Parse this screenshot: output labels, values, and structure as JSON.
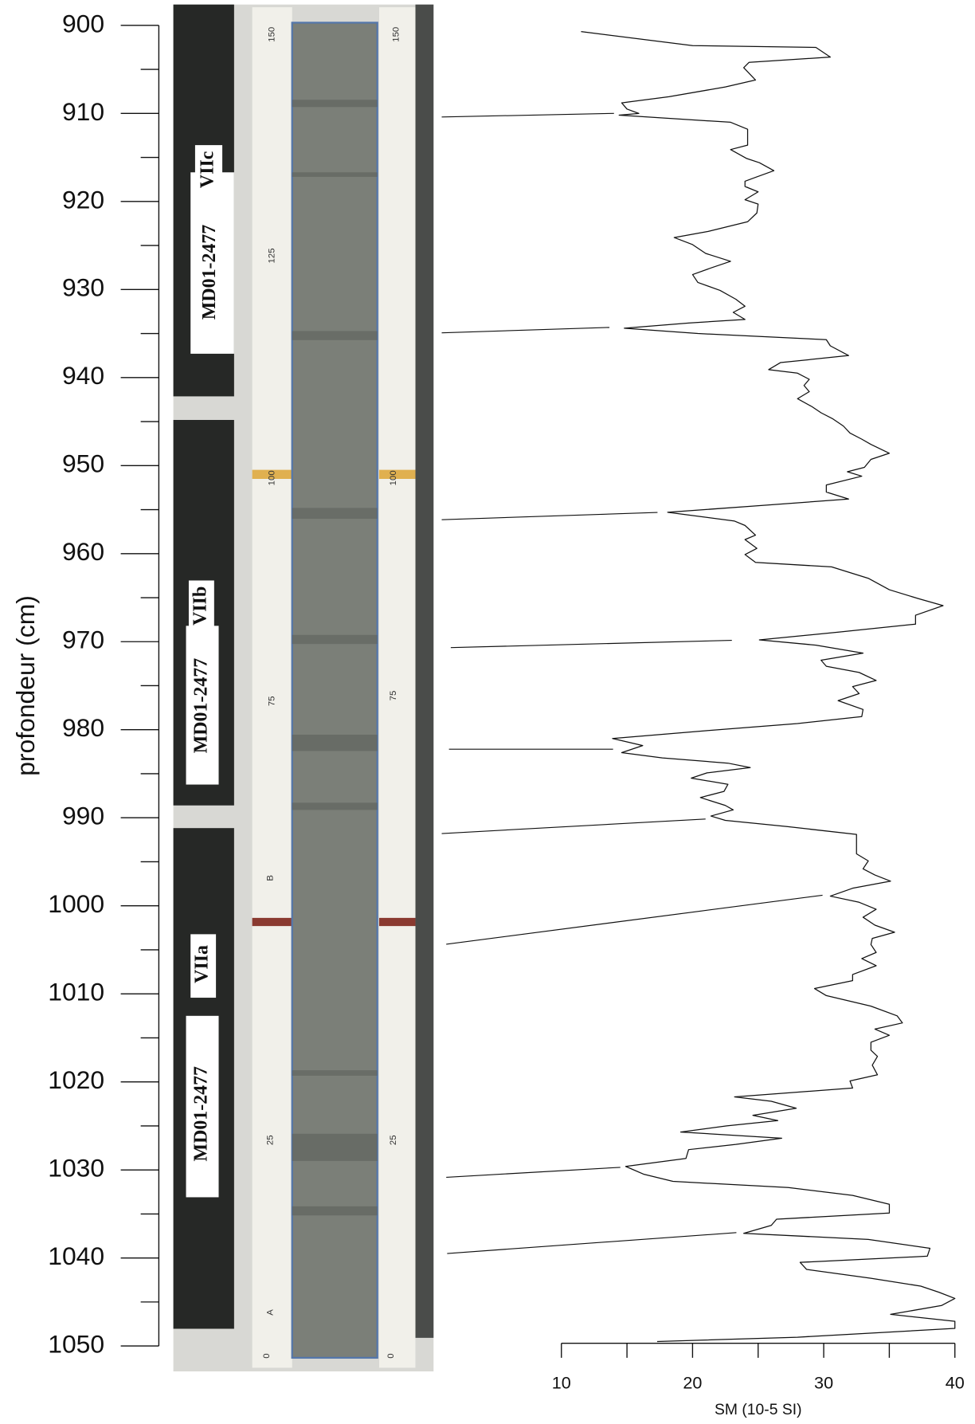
{
  "chart_data": {
    "type": "line",
    "x_label": "SM (10-5 SI)",
    "y_label": "profondeur (cm)",
    "xlim": [
      10,
      40
    ],
    "xticks": [
      10,
      20,
      30,
      40
    ],
    "xminorticks": [
      15,
      25,
      35
    ],
    "ylim": [
      900,
      1050
    ],
    "y_inverted": true,
    "yticks": [
      900,
      910,
      920,
      930,
      940,
      950,
      960,
      970,
      980,
      990,
      1000,
      1010,
      1020,
      1030,
      1040,
      1050
    ],
    "yminorticks": [
      905,
      915,
      925,
      935,
      945,
      955,
      965,
      975,
      985,
      995,
      1005,
      1015,
      1025,
      1035,
      1045
    ],
    "color": "#111111",
    "depth": [
      900.7,
      902.3,
      902.5,
      903.6,
      904.2,
      904.8,
      906.2,
      907.0,
      908.1,
      908.8,
      909.5,
      910.0,
      910.2,
      911.0,
      911.8,
      913.6,
      914.1,
      915.1,
      915.6,
      916.5,
      917.2,
      917.7,
      918.3,
      918.9,
      919.8,
      920.3,
      921.3,
      922.3,
      923.4,
      924.1,
      924.9,
      925.9,
      926.8,
      927.5,
      928.3,
      929.2,
      930.1,
      931.1,
      931.9,
      932.6,
      933.4,
      933.8,
      934.4,
      935.0,
      935.7,
      936.4,
      937.5,
      938.3,
      939.1,
      939.5,
      940.2,
      940.9,
      941.6,
      942.4,
      943.3,
      944.0,
      944.7,
      945.5,
      946.3,
      947.0,
      947.6,
      948.6,
      949.3,
      950.2,
      950.7,
      951.2,
      952.2,
      953.0,
      953.8,
      954.6,
      955.3,
      956.3,
      956.8,
      957.9,
      958.4,
      959.4,
      960.1,
      961.0,
      961.5,
      962.8,
      964.1,
      965.1,
      965.9,
      967.0,
      968.0,
      968.9,
      969.8,
      970.4,
      971.3,
      972.1,
      972.8,
      973.5,
      974.4,
      975.1,
      975.9,
      976.7,
      977.7,
      978.5,
      979.3,
      980.1,
      981.0,
      981.8,
      982.6,
      983.2,
      983.8,
      984.3,
      984.9,
      985.5,
      986.2,
      987.0,
      987.7,
      988.6,
      989.1,
      989.8,
      990.3,
      991.0,
      991.9,
      994.1,
      994.9,
      995.8,
      996.5,
      997.2,
      998.0,
      998.9,
      999.6,
      1000.4,
      1001.3,
      1002.2,
      1003.0,
      1003.7,
      1004.4,
      1005.3,
      1006.0,
      1006.8,
      1007.8,
      1008.5,
      1009.4,
      1010.2,
      1011.4,
      1012.5,
      1013.3,
      1014.0,
      1014.7,
      1015.5,
      1016.4,
      1017.1,
      1018.1,
      1019.2,
      1019.9,
      1020.7,
      1021.7,
      1022.2,
      1023.0,
      1023.8,
      1024.4,
      1025.0,
      1025.7,
      1026.4,
      1027.1,
      1027.7,
      1028.7,
      1029.6,
      1030.5,
      1031.3,
      1032.0,
      1032.9,
      1033.9,
      1034.9,
      1035.6,
      1036.3,
      1037.2,
      1037.9,
      1038.9,
      1039.8,
      1040.5,
      1041.3,
      1042.3,
      1043.2,
      1043.9,
      1044.6,
      1045.4,
      1046.4,
      1047.2,
      1048.0,
      1049.0,
      1049.5
    ],
    "values": [
      11.5,
      20,
      29.4,
      30.5,
      24.3,
      23.9,
      24.8,
      22.5,
      18.2,
      14.6,
      15,
      15.9,
      14.4,
      22.9,
      24.2,
      24.2,
      22.9,
      24.1,
      25.1,
      26.2,
      24.9,
      24,
      24,
      25,
      24,
      25,
      24.9,
      24.2,
      21.2,
      18.6,
      20,
      21,
      22.9,
      21.5,
      20,
      20.4,
      22.1,
      23.3,
      24,
      23.1,
      24,
      19.7,
      14.8,
      20.4,
      30.2,
      30.5,
      31.9,
      26.7,
      25.8,
      28,
      28.9,
      28.5,
      28.9,
      28,
      29.1,
      29.8,
      30.7,
      31.5,
      32,
      32.9,
      33.6,
      35,
      33.6,
      33.1,
      31.8,
      32.9,
      30.2,
      30.2,
      31.9,
      24.6,
      18.1,
      23.2,
      24,
      24.8,
      24,
      24.9,
      24,
      24.8,
      30.6,
      33.4,
      35,
      37.2,
      39.1,
      37,
      37,
      31.2,
      25.1,
      29.4,
      33,
      29.8,
      30.2,
      32.7,
      34,
      32.2,
      32.7,
      31.1,
      33,
      32.9,
      28,
      21.1,
      13.9,
      16.2,
      14.6,
      17.7,
      22.7,
      24.4,
      21.1,
      19.9,
      22.7,
      22.4,
      20.6,
      22.5,
      23.1,
      21.4,
      22.5,
      27.2,
      32.5,
      32.5,
      33.4,
      33,
      33.9,
      35.1,
      32.2,
      30.5,
      32.7,
      34,
      33,
      33.9,
      35.4,
      33.7,
      33.6,
      34,
      32.9,
      34,
      32.2,
      32.2,
      29.3,
      30.2,
      33.6,
      35.6,
      36,
      33.9,
      35,
      33.6,
      33.6,
      34.1,
      33.7,
      34.1,
      32,
      32.2,
      23.2,
      26,
      27.9,
      24.6,
      26.5,
      22.6,
      19.1,
      26.8,
      23.3,
      19.7,
      19.5,
      14.9,
      16.3,
      18.5,
      27.3,
      32.2,
      35,
      35,
      26.4,
      26,
      23.9,
      33.4,
      38.1,
      37.9,
      28.2,
      28.7,
      33.6,
      37.4,
      38.8,
      40,
      39,
      35.1,
      40,
      40,
      28,
      17.3
    ]
  },
  "core": {
    "labels": [
      "MD01-2477",
      "MD01-2477",
      "MD01-2477"
    ],
    "units": [
      "VIIc",
      "VIIb",
      "VIIa"
    ],
    "ruler": [
      "150",
      "150",
      "125",
      "100",
      "100",
      "75",
      "75",
      "B",
      "25",
      "25",
      "A",
      "0",
      "0"
    ]
  }
}
